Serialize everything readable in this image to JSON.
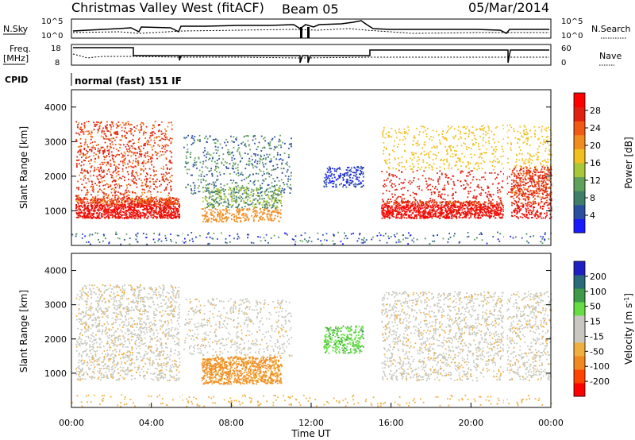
{
  "header": {
    "title": "Christmas Valley West (fitACF)",
    "beam": "Beam 05",
    "date": "05/Mar/2014"
  },
  "top_panels": {
    "nsky_label": "N.Sky",
    "nsky_left_ticks": [
      "10^5",
      "10^0"
    ],
    "nsky_right_ticks": [
      "10^5",
      "10^0"
    ],
    "nsearch_label": "N.Search",
    "freq_label_1": "Freq.",
    "freq_label_2": "[MHz]",
    "freq_left_ticks": [
      "18",
      "8"
    ],
    "freq_right_ticks": [
      "60",
      "0"
    ],
    "nave_label": "Nave",
    "cpid_label": "CPID",
    "cpid_text": "normal (fast) 151 IF"
  },
  "colors": {
    "power_scale": [
      "#1a1aff",
      "#2a4f9e",
      "#3f7f6a",
      "#5fa05a",
      "#a8c83a",
      "#f0c020",
      "#f08c20",
      "#f05a14",
      "#e02010",
      "#ff0000"
    ],
    "velocity_scale": [
      "#2020c0",
      "#2a6a7a",
      "#3f9a4a",
      "#66dd44",
      "#c8c8c0",
      "#c8c8c0",
      "#f0b040",
      "#f08a20",
      "#ff4400",
      "#ff0000"
    ],
    "power_data": "#ee3311",
    "velocity_data": "#c8c8c0"
  },
  "chart_data": [
    {
      "type": "heatmap",
      "name": "power",
      "ylabel": "Slant Range [km]",
      "yticks": [
        1000,
        2000,
        3000,
        4000
      ],
      "ylim": [
        0,
        4500
      ],
      "xlim": [
        "00:00",
        "24:00"
      ],
      "colorbar": {
        "label": "Power [dB]",
        "ticks": [
          4,
          8,
          12,
          16,
          20,
          24,
          28
        ],
        "range": [
          0,
          32
        ]
      }
    },
    {
      "type": "heatmap",
      "name": "velocity",
      "ylabel": "Slant Range [km]",
      "yticks": [
        1000,
        2000,
        3000,
        4000
      ],
      "ylim": [
        0,
        4500
      ],
      "xlim": [
        "00:00",
        "24:00"
      ],
      "xlabel": "Time UT",
      "xticks": [
        "00:00",
        "04:00",
        "08:00",
        "12:00",
        "16:00",
        "20:00",
        "00:00"
      ],
      "colorbar": {
        "label": "Velocity [m s^-1]",
        "ticks": [
          200,
          100,
          50,
          15,
          -15,
          -50,
          -100,
          -200
        ]
      }
    }
  ]
}
